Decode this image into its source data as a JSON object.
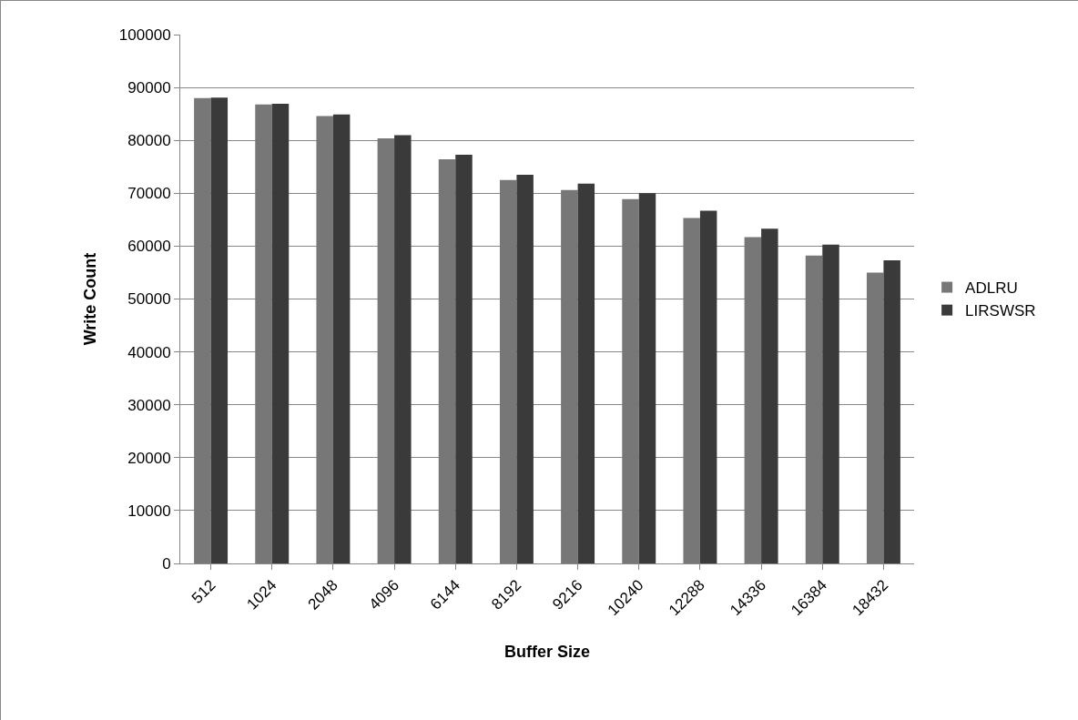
{
  "chart_data": {
    "type": "bar",
    "xlabel": "Buffer Size",
    "ylabel": "Write Count",
    "categories": [
      "512",
      "1024",
      "2048",
      "4096",
      "6144",
      "8192",
      "9216",
      "10240",
      "12288",
      "14336",
      "16384",
      "18432"
    ],
    "series": [
      {
        "name": "ADLRU",
        "color": "#777777",
        "values": [
          88000,
          86800,
          84600,
          80400,
          76400,
          72500,
          70600,
          68900,
          65300,
          61700,
          58200,
          55000
        ]
      },
      {
        "name": "LIRSWSR",
        "color": "#3a3a3a",
        "values": [
          88100,
          86900,
          84900,
          81000,
          77300,
          73500,
          71800,
          70000,
          66700,
          63300,
          60300,
          57300
        ]
      }
    ],
    "ylim": [
      0,
      100000
    ],
    "yticks": [
      0,
      10000,
      20000,
      30000,
      40000,
      50000,
      60000,
      70000,
      80000,
      90000,
      100000
    ],
    "grid": "y",
    "legend": "right"
  }
}
